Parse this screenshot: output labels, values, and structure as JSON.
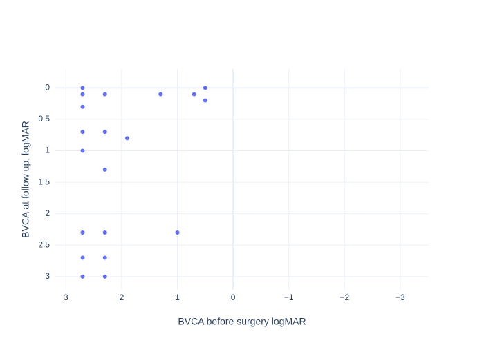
{
  "chart_data": {
    "type": "scatter",
    "x_label": "BVCA before surgery logMAR",
    "y_label": "BVCA at follow up, logMAR",
    "x": [
      2.7,
      2.7,
      2.3,
      1.3,
      0.7,
      0.5,
      0.5,
      2.7,
      2.7,
      2.3,
      1.9,
      2.7,
      2.3,
      2.7,
      2.3,
      1.0,
      2.7,
      2.3,
      2.7,
      2.3
    ],
    "values": [
      0,
      0.1,
      0.1,
      0.1,
      0.1,
      0,
      0.2,
      0.3,
      0.7,
      0.7,
      0.8,
      1.0,
      1.3,
      2.3,
      2.3,
      2.3,
      2.7,
      2.7,
      3.0,
      3.0
    ],
    "color": "#636efa",
    "xlim": [
      3.19,
      -3.51
    ],
    "ylim": [
      3.21,
      -0.3
    ],
    "xticks": [
      3,
      2,
      1,
      0,
      {
        "value": -1,
        "label": "−1"
      },
      {
        "value": -2,
        "label": "−2"
      },
      {
        "value": -3,
        "label": "−3"
      }
    ],
    "yticks": [
      0,
      0.5,
      1,
      1.5,
      2,
      2.5,
      3
    ],
    "grid": true
  }
}
